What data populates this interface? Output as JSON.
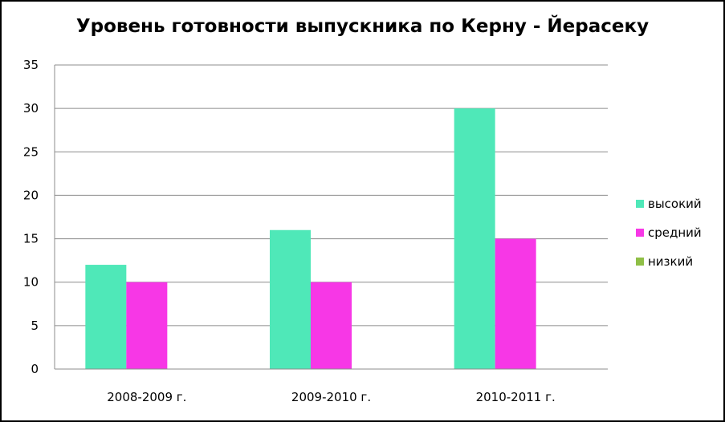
{
  "chart_data": {
    "type": "bar",
    "title": "Уровень готовности выпускника по  Керну - Йерасеку",
    "categories": [
      "2008-2009 г.",
      "2009-2010 г.",
      "2010-2011 г."
    ],
    "series": [
      {
        "name": "высокий",
        "values": [
          12,
          16,
          30
        ],
        "color": "#4fe8b8"
      },
      {
        "name": "средний",
        "values": [
          10,
          10,
          15
        ],
        "color": "#f737e6"
      },
      {
        "name": "низкий",
        "values": [
          0,
          0,
          0
        ],
        "color": "#8fbf46"
      }
    ],
    "ylim": [
      0,
      35
    ],
    "yticks": [
      0,
      5,
      10,
      15,
      20,
      25,
      30,
      35
    ],
    "grid": true,
    "legend": "right"
  }
}
